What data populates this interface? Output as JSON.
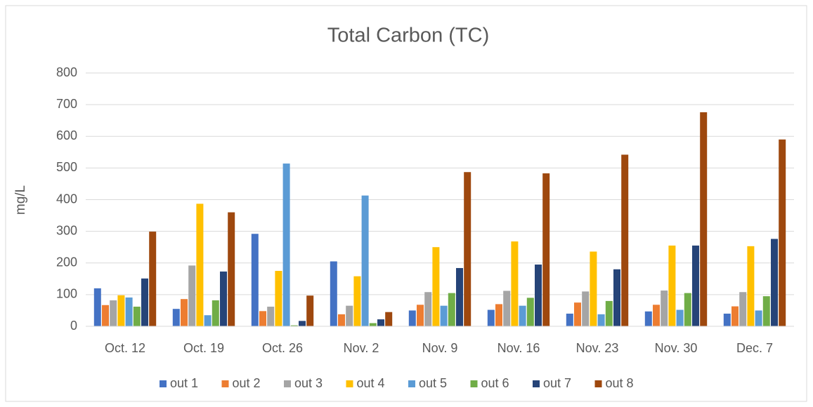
{
  "chart_data": {
    "type": "bar",
    "title": "Total Carbon (TC)",
    "y_label": "mg/L",
    "categories": [
      "Oct. 12",
      "Oct. 19",
      "Oct. 26",
      "Nov. 2",
      "Nov. 9",
      "Nov. 16",
      "Nov. 23",
      "Nov. 30",
      "Dec. 7"
    ],
    "series": [
      {
        "name": "out 1",
        "color": "#4472c4",
        "values": [
          120,
          55,
          292,
          205,
          50,
          52,
          40,
          47,
          40
        ]
      },
      {
        "name": "out 2",
        "color": "#ed7d31",
        "values": [
          67,
          86,
          48,
          38,
          68,
          70,
          75,
          68,
          63
        ]
      },
      {
        "name": "out 3",
        "color": "#a5a5a5",
        "values": [
          82,
          192,
          62,
          65,
          108,
          112,
          110,
          113,
          108
        ]
      },
      {
        "name": "out 4",
        "color": "#ffc000",
        "values": [
          98,
          387,
          175,
          158,
          250,
          268,
          236,
          255,
          253
        ]
      },
      {
        "name": "out 5",
        "color": "#5b9bd5",
        "values": [
          91,
          35,
          514,
          413,
          65,
          65,
          38,
          52,
          50
        ]
      },
      {
        "name": "out 6",
        "color": "#70ad47",
        "values": [
          62,
          82,
          3,
          10,
          105,
          90,
          80,
          105,
          95
        ]
      },
      {
        "name": "out 7",
        "color": "#264478",
        "values": [
          151,
          173,
          17,
          22,
          184,
          195,
          180,
          255,
          276
        ]
      },
      {
        "name": "out 8",
        "color": "#9e480e",
        "values": [
          299,
          360,
          97,
          45,
          487,
          483,
          542,
          676,
          590
        ]
      }
    ],
    "ylim": [
      0,
      800
    ],
    "yticks": [
      0,
      100,
      200,
      300,
      400,
      500,
      600,
      700,
      800
    ],
    "grid": true,
    "legend": "bottom"
  }
}
